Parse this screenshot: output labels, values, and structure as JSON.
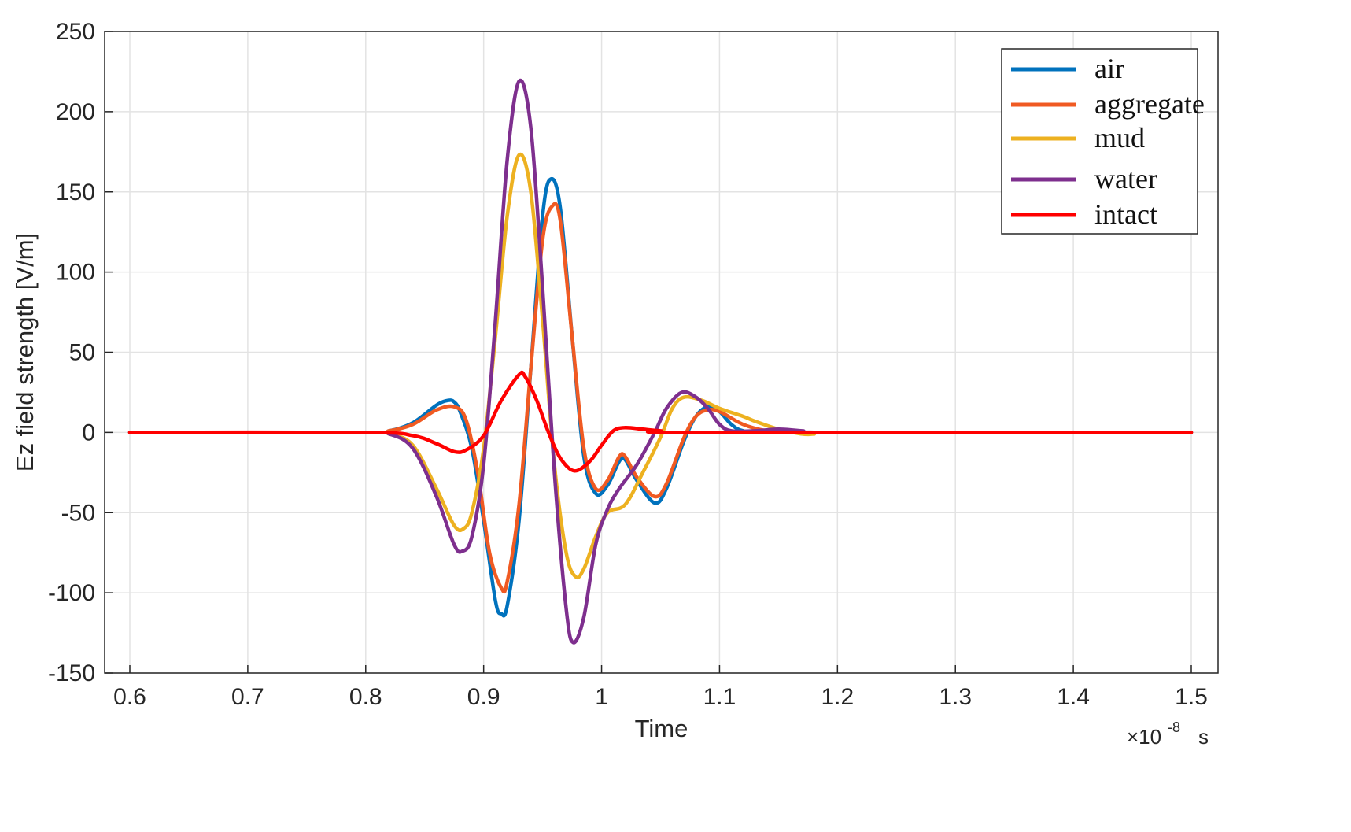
{
  "chart_data": {
    "type": "line",
    "title": "",
    "xlabel": "Time",
    "ylabel": "Ez field strength [V/m]",
    "x_exponent_label": "×10",
    "x_exponent_power": "-8",
    "x_unit": "s",
    "xlim": [
      0.6,
      1.5
    ],
    "ylim": [
      -150,
      250
    ],
    "xticks": [
      "0.6",
      "0.7",
      "0.8",
      "0.9",
      "1",
      "1.1",
      "1.2",
      "1.3",
      "1.4",
      "1.5"
    ],
    "yticks": [
      "-150",
      "-100",
      "-50",
      "0",
      "50",
      "100",
      "150",
      "200",
      "250"
    ],
    "grid": true,
    "legend_position": "top-right",
    "series": [
      {
        "name": "air",
        "color": "#0072BD",
        "points": [
          [
            0.6,
            0
          ],
          [
            0.8,
            0
          ],
          [
            0.82,
            1
          ],
          [
            0.84,
            6
          ],
          [
            0.86,
            17
          ],
          [
            0.87,
            20
          ],
          [
            0.875,
            19
          ],
          [
            0.88,
            13
          ],
          [
            0.89,
            -10
          ],
          [
            0.9,
            -55
          ],
          [
            0.91,
            -105
          ],
          [
            0.915,
            -113
          ],
          [
            0.92,
            -108
          ],
          [
            0.93,
            -55
          ],
          [
            0.94,
            40
          ],
          [
            0.95,
            135
          ],
          [
            0.957,
            158
          ],
          [
            0.965,
            140
          ],
          [
            0.975,
            60
          ],
          [
            0.985,
            -15
          ],
          [
            0.995,
            -38
          ],
          [
            1.005,
            -33
          ],
          [
            1.015,
            -18
          ],
          [
            1.02,
            -17
          ],
          [
            1.03,
            -30
          ],
          [
            1.045,
            -44
          ],
          [
            1.055,
            -35
          ],
          [
            1.07,
            -5
          ],
          [
            1.08,
            10
          ],
          [
            1.09,
            16
          ],
          [
            1.1,
            13
          ],
          [
            1.11,
            5
          ],
          [
            1.12,
            1
          ],
          [
            1.14,
            0
          ],
          [
            1.5,
            0
          ]
        ]
      },
      {
        "name": "aggregate",
        "color": "#F05A22",
        "points": [
          [
            0.6,
            0
          ],
          [
            0.8,
            0
          ],
          [
            0.82,
            1
          ],
          [
            0.84,
            5
          ],
          [
            0.86,
            14
          ],
          [
            0.875,
            16
          ],
          [
            0.885,
            8
          ],
          [
            0.895,
            -25
          ],
          [
            0.905,
            -75
          ],
          [
            0.915,
            -97
          ],
          [
            0.92,
            -93
          ],
          [
            0.93,
            -45
          ],
          [
            0.94,
            40
          ],
          [
            0.95,
            120
          ],
          [
            0.958,
            141
          ],
          [
            0.965,
            132
          ],
          [
            0.975,
            60
          ],
          [
            0.985,
            -10
          ],
          [
            0.995,
            -35
          ],
          [
            1.005,
            -30
          ],
          [
            1.015,
            -15
          ],
          [
            1.02,
            -15
          ],
          [
            1.03,
            -28
          ],
          [
            1.045,
            -40
          ],
          [
            1.055,
            -32
          ],
          [
            1.07,
            -3
          ],
          [
            1.08,
            10
          ],
          [
            1.09,
            14
          ],
          [
            1.1,
            13
          ],
          [
            1.12,
            5
          ],
          [
            1.14,
            1
          ],
          [
            1.16,
            0
          ],
          [
            1.5,
            0
          ]
        ]
      },
      {
        "name": "mud",
        "color": "#EDB120",
        "points": [
          [
            0.6,
            0
          ],
          [
            0.8,
            0
          ],
          [
            0.82,
            -1
          ],
          [
            0.84,
            -8
          ],
          [
            0.86,
            -35
          ],
          [
            0.875,
            -58
          ],
          [
            0.883,
            -60
          ],
          [
            0.89,
            -50
          ],
          [
            0.9,
            -10
          ],
          [
            0.91,
            60
          ],
          [
            0.92,
            135
          ],
          [
            0.93,
            173
          ],
          [
            0.94,
            150
          ],
          [
            0.95,
            70
          ],
          [
            0.96,
            -20
          ],
          [
            0.97,
            -75
          ],
          [
            0.978,
            -90
          ],
          [
            0.985,
            -85
          ],
          [
            0.995,
            -65
          ],
          [
            1.005,
            -50
          ],
          [
            1.02,
            -45
          ],
          [
            1.035,
            -25
          ],
          [
            1.05,
            -3
          ],
          [
            1.06,
            15
          ],
          [
            1.07,
            22
          ],
          [
            1.085,
            20
          ],
          [
            1.1,
            15
          ],
          [
            1.12,
            10
          ],
          [
            1.13,
            7
          ],
          [
            1.15,
            2
          ],
          [
            1.17,
            -1
          ],
          [
            1.18,
            -1
          ],
          [
            1.2,
            0
          ],
          [
            1.5,
            0
          ]
        ]
      },
      {
        "name": "water",
        "color": "#7E2F8E",
        "points": [
          [
            0.6,
            0
          ],
          [
            0.8,
            0
          ],
          [
            0.82,
            -1
          ],
          [
            0.84,
            -10
          ],
          [
            0.86,
            -40
          ],
          [
            0.875,
            -70
          ],
          [
            0.882,
            -74
          ],
          [
            0.89,
            -65
          ],
          [
            0.9,
            -20
          ],
          [
            0.91,
            70
          ],
          [
            0.92,
            170
          ],
          [
            0.93,
            219
          ],
          [
            0.94,
            190
          ],
          [
            0.95,
            90
          ],
          [
            0.96,
            -25
          ],
          [
            0.97,
            -110
          ],
          [
            0.976,
            -131
          ],
          [
            0.985,
            -115
          ],
          [
            0.995,
            -70
          ],
          [
            1.005,
            -48
          ],
          [
            1.015,
            -35
          ],
          [
            1.03,
            -20
          ],
          [
            1.045,
            0
          ],
          [
            1.055,
            15
          ],
          [
            1.068,
            25
          ],
          [
            1.08,
            22
          ],
          [
            1.09,
            15
          ],
          [
            1.1,
            5
          ],
          [
            1.11,
            1
          ],
          [
            1.13,
            1
          ],
          [
            1.15,
            2
          ],
          [
            1.17,
            1
          ],
          [
            1.2,
            0
          ],
          [
            1.5,
            0
          ]
        ]
      },
      {
        "name": "intact",
        "color": "#FF0000",
        "points": [
          [
            0.6,
            0
          ],
          [
            0.8,
            0
          ],
          [
            0.84,
            -2
          ],
          [
            0.86,
            -7
          ],
          [
            0.875,
            -12
          ],
          [
            0.885,
            -11
          ],
          [
            0.9,
            -2
          ],
          [
            0.915,
            20
          ],
          [
            0.93,
            36
          ],
          [
            0.935,
            35
          ],
          [
            0.945,
            20
          ],
          [
            0.955,
            0
          ],
          [
            0.965,
            -16
          ],
          [
            0.977,
            -24
          ],
          [
            0.99,
            -18
          ],
          [
            1.0,
            -8
          ],
          [
            1.01,
            1
          ],
          [
            1.02,
            3
          ],
          [
            1.035,
            2
          ],
          [
            1.05,
            1
          ],
          [
            1.08,
            0
          ],
          [
            1.5,
            0
          ]
        ]
      }
    ]
  }
}
